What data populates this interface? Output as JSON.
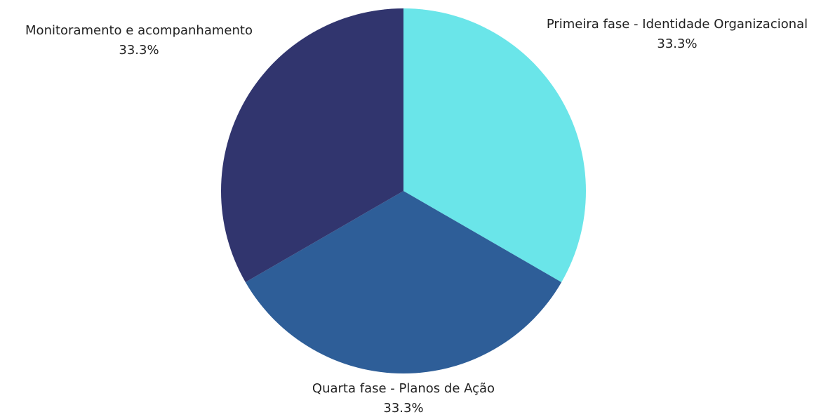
{
  "chart_data": {
    "type": "pie",
    "title": "",
    "slices": [
      {
        "label": "Primeira fase - Identidade Organizacional",
        "value": 33.3,
        "percent_label": "33.3%",
        "color": "#6ae5e9"
      },
      {
        "label": "Quarta fase - Planos de Ação",
        "value": 33.3,
        "percent_label": "33.3%",
        "color": "#2e5e98"
      },
      {
        "label": "Monitoramento e acompanhamento",
        "value": 33.3,
        "percent_label": "33.3%",
        "color": "#31356e"
      }
    ],
    "start_angle_deg": 90,
    "direction": "clockwise",
    "legend": "none",
    "labels_outside": true
  }
}
